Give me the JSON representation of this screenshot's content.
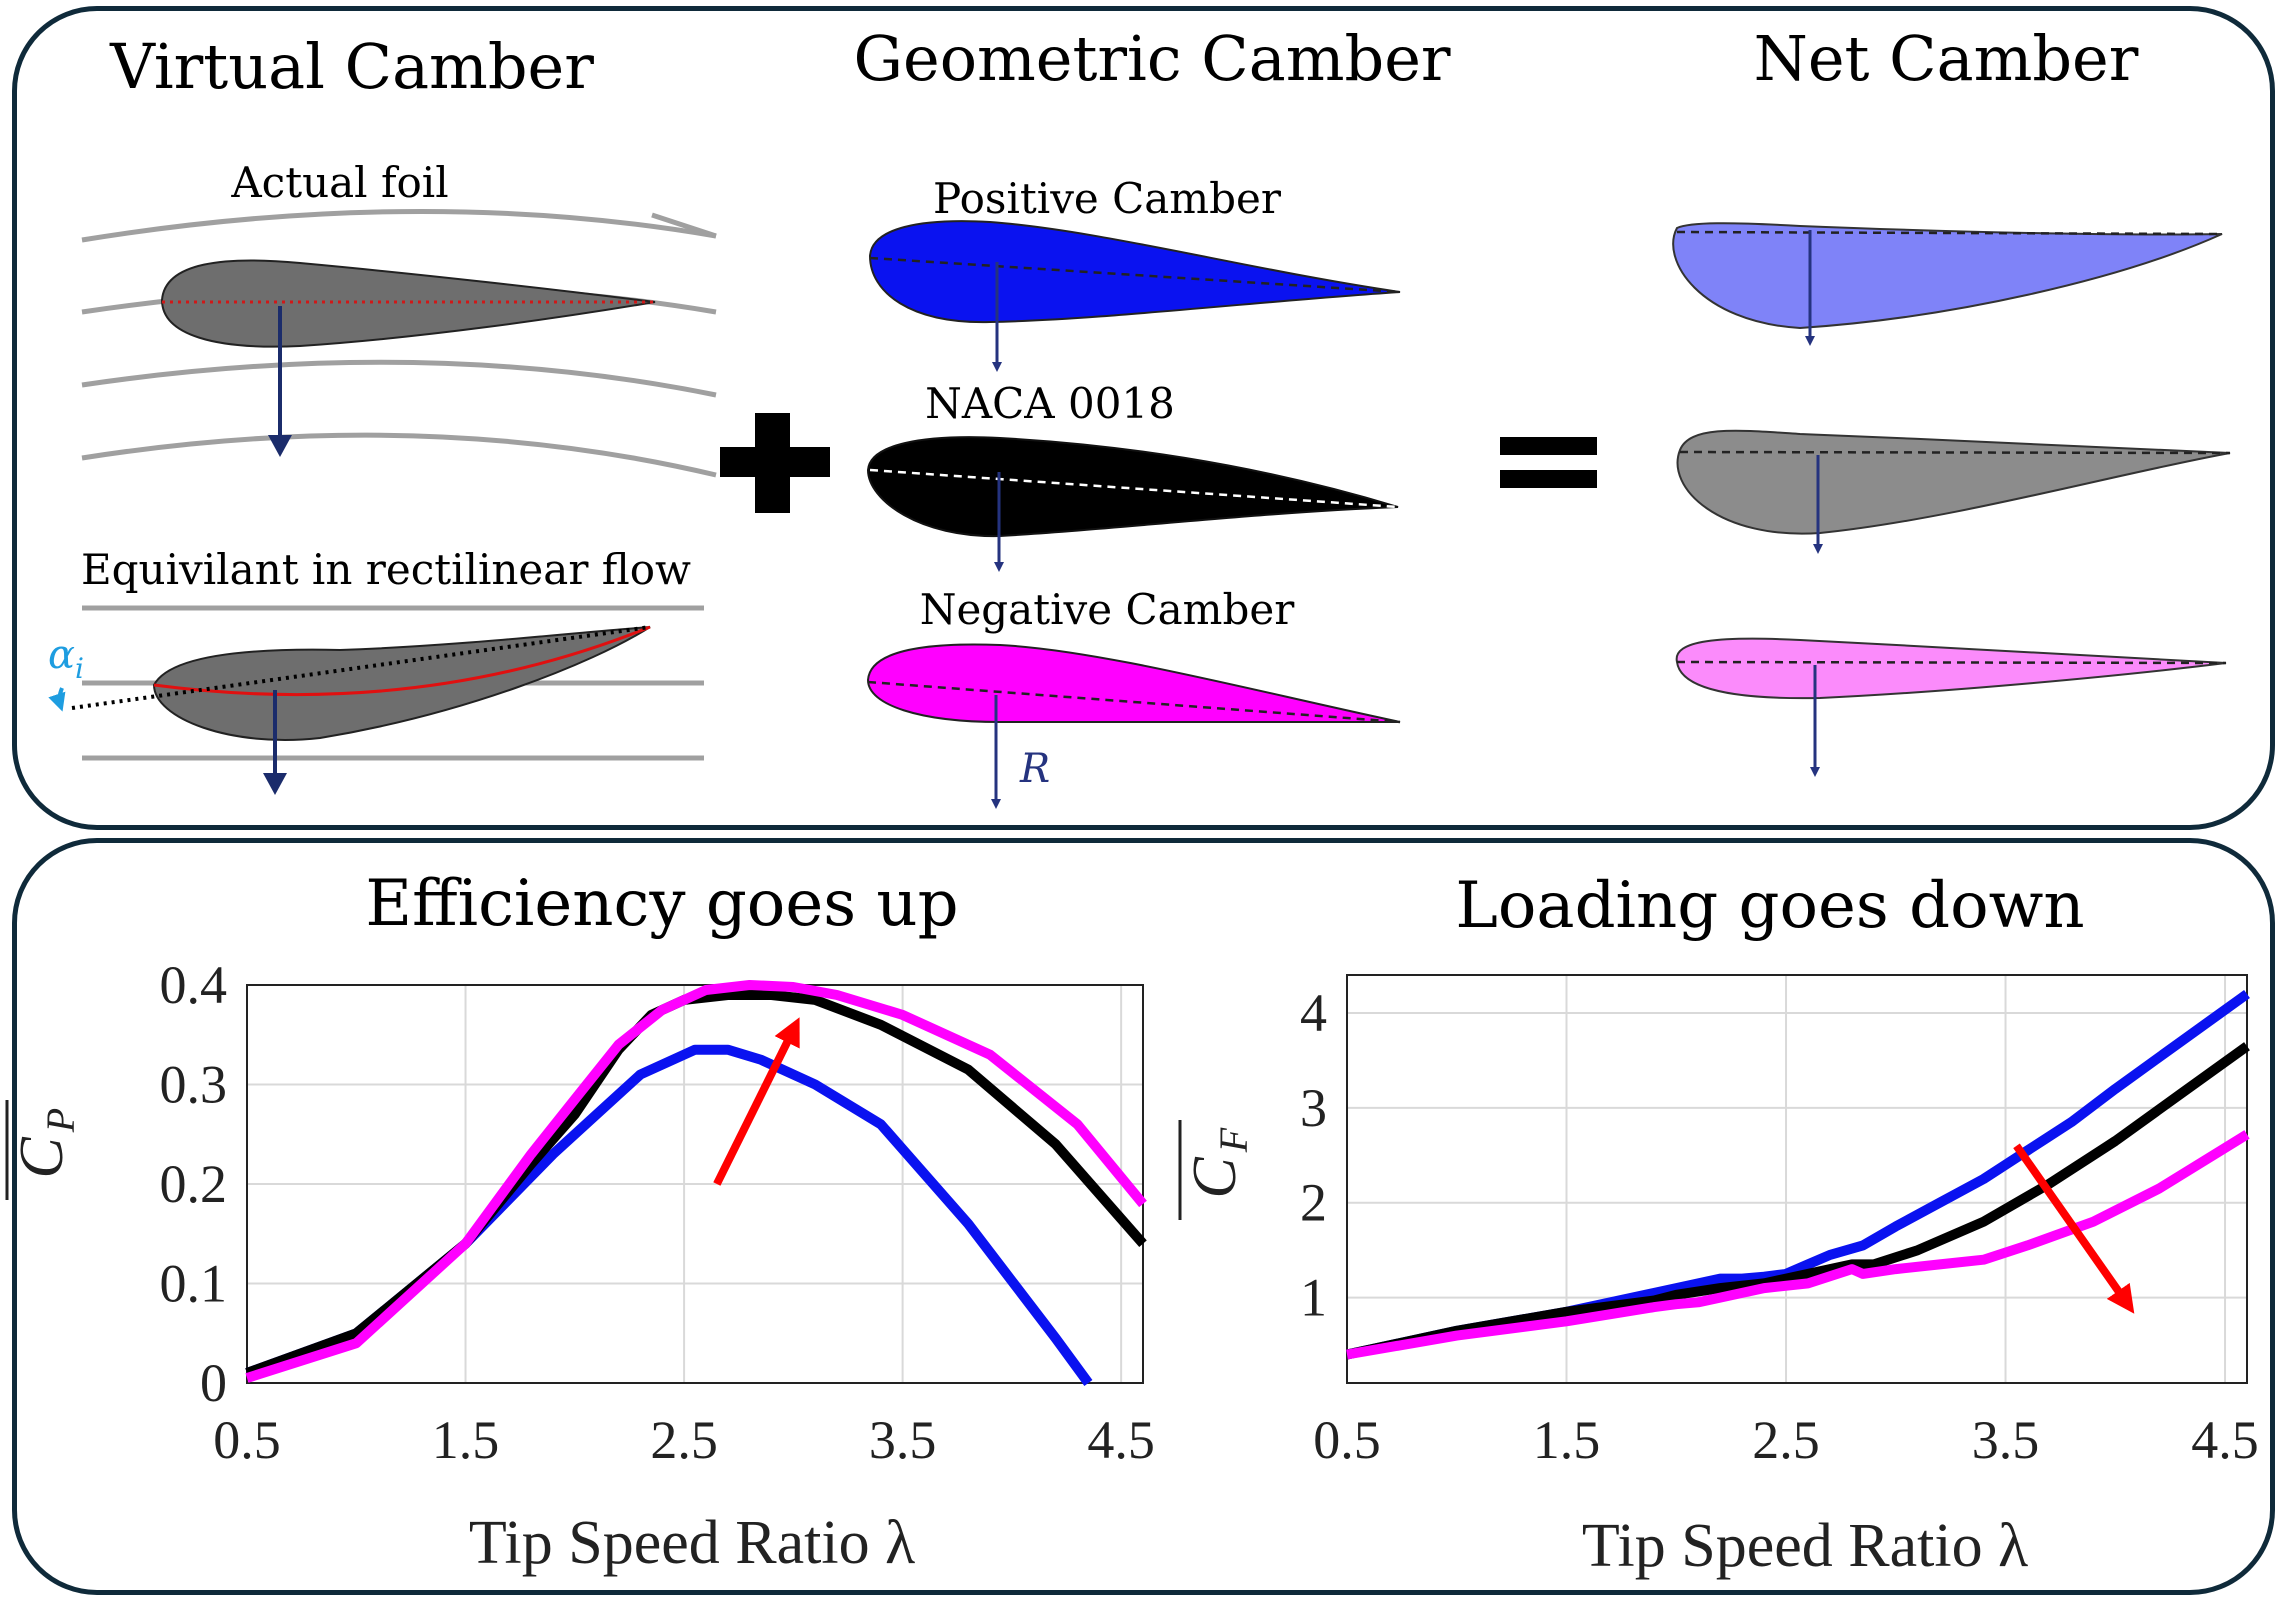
{
  "titles": {
    "virtual": "Virtual Camber",
    "geometric": "Geometric Camber",
    "net": "Net Camber",
    "efficiency": "Efficiency goes up",
    "loading": "Loading goes down"
  },
  "labels": {
    "actual_foil": "Actual foil",
    "equivalent": "Equivilant in rectilinear flow",
    "alpha": "α",
    "alpha_sub": "i",
    "positive": "Positive Camber",
    "naca": "NACA 0018",
    "negative": "Negative Camber",
    "resultant": "R"
  },
  "colors": {
    "positive_foil": "#0a12f0",
    "naca_foil": "#000000",
    "negative_foil": "#ff00ff",
    "net_positive": "#7f83f8",
    "net_naca": "#8c8c8c",
    "net_negative": "#fb8bfb",
    "arrow_navy": "#25337f",
    "trend_arrow": "#ff0000",
    "alpha_color": "#1e9de0"
  },
  "chart_data": [
    {
      "type": "line",
      "title": "Efficiency goes up",
      "xlabel": "Tip Speed Ratio λ",
      "ylabel_main": "C",
      "ylabel_sub": "P",
      "xlim": [
        0.5,
        4.6
      ],
      "ylim": [
        0,
        0.4
      ],
      "xticks": [
        "0.5",
        "1.5",
        "2.5",
        "3.5",
        "4.5"
      ],
      "xtick_values": [
        0.5,
        1.5,
        2.5,
        3.5,
        4.5
      ],
      "yticks": [
        "0",
        "0.1",
        "0.2",
        "0.3",
        "0.4"
      ],
      "ytick_values": [
        0,
        0.1,
        0.2,
        0.3,
        0.4
      ],
      "grid": true,
      "series": [
        {
          "name": "Positive Camber",
          "color": "#0a12f0",
          "x": [
            0.5,
            1.0,
            1.5,
            1.9,
            2.1,
            2.3,
            2.55,
            2.7,
            2.85,
            3.1,
            3.4,
            3.8,
            4.2,
            4.35
          ],
          "y": [
            0.01,
            0.05,
            0.14,
            0.23,
            0.27,
            0.31,
            0.335,
            0.335,
            0.325,
            0.3,
            0.26,
            0.16,
            0.045,
            0.0
          ]
        },
        {
          "name": "NACA 0018",
          "color": "#000000",
          "x": [
            0.5,
            1.0,
            1.5,
            1.8,
            2.0,
            2.2,
            2.35,
            2.5,
            2.7,
            2.9,
            3.1,
            3.4,
            3.8,
            4.2,
            4.6
          ],
          "y": [
            0.01,
            0.05,
            0.14,
            0.22,
            0.27,
            0.335,
            0.37,
            0.385,
            0.39,
            0.39,
            0.385,
            0.36,
            0.315,
            0.24,
            0.14
          ]
        },
        {
          "name": "Negative Camber",
          "color": "#ff00ff",
          "x": [
            0.5,
            1.0,
            1.5,
            1.8,
            2.0,
            2.2,
            2.4,
            2.6,
            2.8,
            3.0,
            3.2,
            3.5,
            3.9,
            4.3,
            4.6
          ],
          "y": [
            0.005,
            0.04,
            0.14,
            0.23,
            0.285,
            0.34,
            0.375,
            0.395,
            0.4,
            0.398,
            0.39,
            0.37,
            0.33,
            0.26,
            0.18
          ]
        }
      ],
      "trend_arrow": {
        "from": [
          2.65,
          0.2
        ],
        "to": [
          3.0,
          0.355
        ]
      }
    },
    {
      "type": "line",
      "title": "Loading goes down",
      "xlabel": "Tip Speed Ratio λ",
      "ylabel_main": "C",
      "ylabel_sub": "F",
      "xlim": [
        0.5,
        4.6
      ],
      "ylim": [
        0.1,
        4.4
      ],
      "xticks": [
        "0.5",
        "1.5",
        "2.5",
        "3.5",
        "4.5"
      ],
      "xtick_values": [
        0.5,
        1.5,
        2.5,
        3.5,
        4.5
      ],
      "yticks": [
        "1",
        "2",
        "3",
        "4"
      ],
      "ytick_values": [
        1,
        2,
        3,
        4
      ],
      "grid": true,
      "series": [
        {
          "name": "Positive Camber",
          "color": "#0a12f0",
          "x": [
            0.5,
            1.0,
            1.5,
            1.9,
            2.0,
            2.1,
            2.2,
            2.3,
            2.4,
            2.5,
            2.6,
            2.7,
            2.85,
            3.0,
            3.2,
            3.4,
            3.6,
            3.8,
            4.0,
            4.3,
            4.6
          ],
          "y": [
            0.4,
            0.65,
            0.85,
            1.05,
            1.1,
            1.15,
            1.2,
            1.2,
            1.22,
            1.25,
            1.35,
            1.45,
            1.55,
            1.75,
            2.0,
            2.25,
            2.55,
            2.85,
            3.2,
            3.7,
            4.2
          ]
        },
        {
          "name": "NACA 0018",
          "color": "#000000",
          "x": [
            0.5,
            1.0,
            1.5,
            1.9,
            2.0,
            2.2,
            2.4,
            2.6,
            2.8,
            2.9,
            3.1,
            3.4,
            3.7,
            4.0,
            4.3,
            4.6
          ],
          "y": [
            0.4,
            0.65,
            0.85,
            0.97,
            1.03,
            1.1,
            1.15,
            1.25,
            1.35,
            1.35,
            1.5,
            1.8,
            2.2,
            2.65,
            3.15,
            3.65
          ]
        },
        {
          "name": "Negative Camber",
          "color": "#ff00ff",
          "x": [
            0.5,
            1.0,
            1.5,
            1.9,
            2.0,
            2.1,
            2.2,
            2.4,
            2.6,
            2.8,
            2.85,
            3.0,
            3.2,
            3.4,
            3.6,
            3.9,
            4.2,
            4.6
          ],
          "y": [
            0.4,
            0.6,
            0.75,
            0.9,
            0.93,
            0.95,
            1.0,
            1.1,
            1.15,
            1.3,
            1.25,
            1.3,
            1.35,
            1.4,
            1.55,
            1.8,
            2.15,
            2.72
          ]
        }
      ],
      "trend_arrow": {
        "from": [
          3.55,
          2.6
        ],
        "to": [
          4.05,
          0.95
        ]
      }
    }
  ]
}
